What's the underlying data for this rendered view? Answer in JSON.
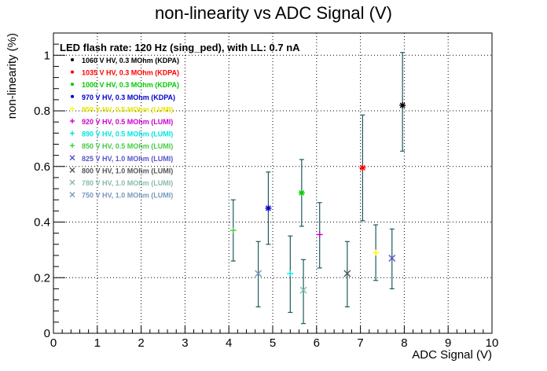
{
  "chart_data": {
    "type": "scatter",
    "title": "non-linearity vs ADC Signal (V)",
    "xlabel": "ADC Signal (V)",
    "ylabel": "non-linearity (%)",
    "xlim": [
      0,
      10
    ],
    "ylim": [
      0,
      1.08
    ],
    "xticks": [
      "0",
      "1",
      "2",
      "3",
      "4",
      "5",
      "6",
      "7",
      "8",
      "9",
      "10"
    ],
    "yticks": [
      {
        "value": 0,
        "label": "0"
      },
      {
        "value": 0.2,
        "label": "0.2"
      },
      {
        "value": 0.4,
        "label": "0.4"
      },
      {
        "value": 0.6,
        "label": "0.6"
      },
      {
        "value": 0.8,
        "label": "0.8"
      },
      {
        "value": 1.0,
        "label": "1"
      }
    ],
    "grid": true,
    "annotation": "LED flash rate: 120 Hz  (sing_ped), with LL: 0.7 nA",
    "legend_position": "top-left",
    "series": [
      {
        "name": "1060 V HV, 0.3 MOhm (KDPA)",
        "color": "#000000",
        "marker": "star",
        "x": 7.96,
        "y": 0.82,
        "err_low": 0.165,
        "err_high": 0.19
      },
      {
        "name": "1035 V HV, 0.3 MOhm (KDPA)",
        "color": "#ff0000",
        "marker": "star",
        "x": 7.05,
        "y": 0.595,
        "err_low": 0.19,
        "err_high": 0.19
      },
      {
        "name": "1000 V HV, 0.3 MOhm (KDPA)",
        "color": "#00cc00",
        "marker": "star",
        "x": 5.66,
        "y": 0.505,
        "err_low": 0.12,
        "err_high": 0.12
      },
      {
        "name": "970 V HV, 0.3 MOhm (KDPA)",
        "color": "#0000cc",
        "marker": "star",
        "x": 4.9,
        "y": 0.45,
        "err_low": 0.13,
        "err_high": 0.13
      },
      {
        "name": "950 V HV, 0.5 MOhm (LUMI)",
        "color": "#ffff00",
        "marker": "plus",
        "x": 7.35,
        "y": 0.29,
        "err_low": 0.1,
        "err_high": 0.1
      },
      {
        "name": "920 V HV, 0.5 MOhm (LUMI)",
        "color": "#cc00cc",
        "marker": "plus",
        "x": 6.07,
        "y": 0.355,
        "err_low": 0.12,
        "err_high": 0.115
      },
      {
        "name": "890 V HV, 0.5 MOhm (LUMI)",
        "color": "#00e5e5",
        "marker": "plus",
        "x": 5.4,
        "y": 0.215,
        "err_low": 0.14,
        "err_high": 0.135
      },
      {
        "name": "850 V HV, 0.5 MOhm (LUMI)",
        "color": "#44cc44",
        "marker": "plus",
        "x": 4.1,
        "y": 0.37,
        "err_low": 0.11,
        "err_high": 0.11
      },
      {
        "name": "825 V HV, 1.0 MOhm (LUMI)",
        "color": "#5555cc",
        "marker": "x",
        "x": 7.72,
        "y": 0.27,
        "err_low": 0.11,
        "err_high": 0.105
      },
      {
        "name": "800 V HV, 1.0 MOhm (LUMI)",
        "color": "#555555",
        "marker": "x",
        "x": 6.7,
        "y": 0.215,
        "err_low": 0.12,
        "err_high": 0.115
      },
      {
        "name": "780 V HV, 1.0 MOhm (LUMI)",
        "color": "#88bbaa",
        "marker": "x",
        "x": 5.7,
        "y": 0.155,
        "err_low": 0.12,
        "err_high": 0.11
      },
      {
        "name": "750 V HV, 1.0 MOhm (LUMI)",
        "color": "#7799bb",
        "marker": "x",
        "x": 4.67,
        "y": 0.215,
        "err_low": 0.12,
        "err_high": 0.115
      }
    ],
    "error_bar_color": "#1a5c5c"
  }
}
